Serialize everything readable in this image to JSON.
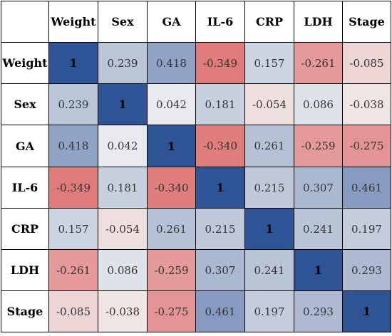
{
  "chart_data": {
    "type": "heatmap",
    "variables": [
      "Weight",
      "Sex",
      "GA",
      "IL-6",
      "CRP",
      "LDH",
      "Stage"
    ],
    "values": [
      [
        "1",
        "0.239",
        "0.418",
        "-0.349",
        "0.157",
        "-0.261",
        "-0.085"
      ],
      [
        "0.239",
        "1",
        "0.042",
        "0.181",
        "-0.054",
        "0.086",
        "-0.038"
      ],
      [
        "0.418",
        "0.042",
        "1",
        "-0.340",
        "0.261",
        "-0.259",
        "-0.275"
      ],
      [
        "-0.349",
        "0.181",
        "-0.340",
        "1",
        "0.215",
        "0.307",
        "0.461"
      ],
      [
        "0.157",
        "-0.054",
        "0.261",
        "0.215",
        "1",
        "0.241",
        "0.197"
      ],
      [
        "-0.261",
        "0.086",
        "-0.259",
        "0.307",
        "0.241",
        "1",
        "0.293"
      ],
      [
        "-0.085",
        "-0.038",
        "-0.275",
        "0.461",
        "0.197",
        "0.293",
        "1"
      ]
    ],
    "colors": {
      "max_positive": "#2f5496",
      "neutral": "#f2f2f2",
      "max_negative": "#e07b7b"
    },
    "value_range": [
      -1,
      1
    ]
  }
}
